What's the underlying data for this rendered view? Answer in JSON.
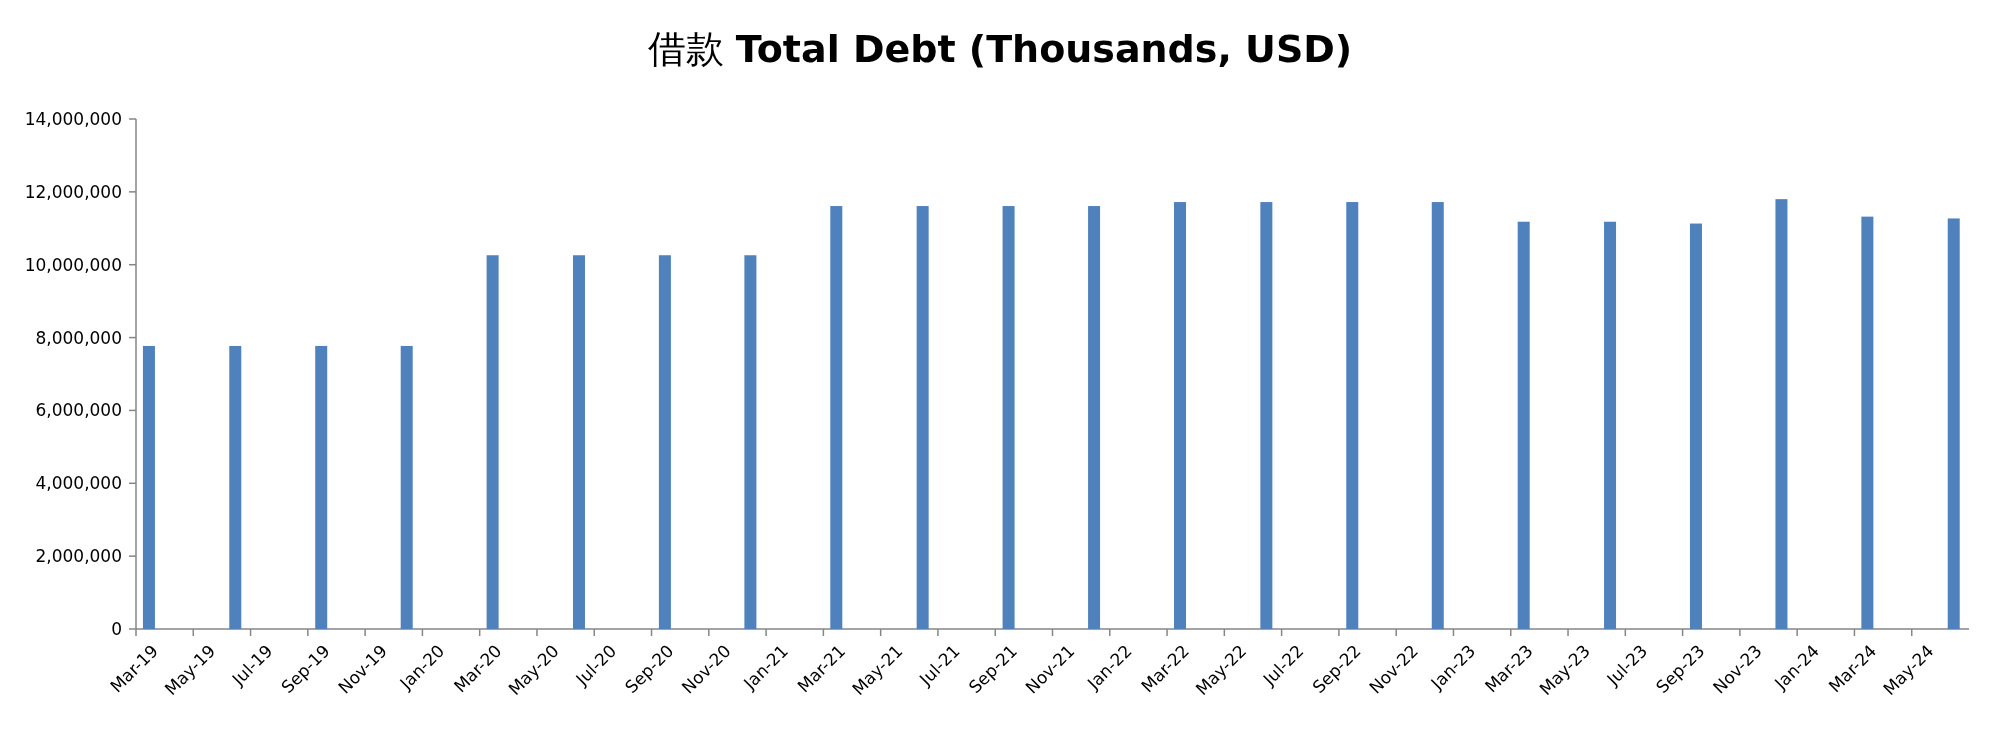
{
  "chart_data": {
    "type": "bar",
    "title": "借款 **Total Debt (Thousands, USD)**",
    "x": [
      "2019-03-15",
      "2019-06-15",
      "2019-09-15",
      "2019-12-15",
      "2020-03-15",
      "2020-06-15",
      "2020-09-15",
      "2020-12-15",
      "2021-03-15",
      "2021-06-15",
      "2021-09-15",
      "2021-12-15",
      "2022-03-15",
      "2022-06-15",
      "2022-09-15",
      "2022-12-15",
      "2023-03-15",
      "2023-06-15",
      "2023-09-15",
      "2023-12-15",
      "2024-03-15",
      "2024-06-15"
    ],
    "values": [
      7770000,
      7770000,
      7770000,
      7770000,
      10260000,
      10260000,
      10260000,
      10260000,
      11610000,
      11610000,
      11610000,
      11610000,
      11720000,
      11720000,
      11720000,
      11720000,
      11180000,
      11180000,
      11130000,
      11800000,
      11320000,
      11270000
    ],
    "color": "#4f81bd",
    "xlim": [
      "2019-03",
      "2024-07"
    ],
    "ylim": [
      0,
      14000000
    ],
    "yticks": [
      {
        "value": 0,
        "label": "0"
      },
      {
        "value": 2000000,
        "label": "2,000,000"
      },
      {
        "value": 4000000,
        "label": "4,000,000"
      },
      {
        "value": 6000000,
        "label": "6,000,000"
      },
      {
        "value": 8000000,
        "label": "8,000,000"
      },
      {
        "value": 10000000,
        "label": "10,000,000"
      },
      {
        "value": 12000000,
        "label": "12,000,000"
      },
      {
        "value": 14000000,
        "label": "14,000,000"
      }
    ],
    "xticks": [
      {
        "value": "2019-03",
        "label": "Mar-19"
      },
      {
        "value": "2019-05",
        "label": "May-19"
      },
      {
        "value": "2019-07",
        "label": "Jul-19"
      },
      {
        "value": "2019-09",
        "label": "Sep-19"
      },
      {
        "value": "2019-11",
        "label": "Nov-19"
      },
      {
        "value": "2020-01",
        "label": "Jan-20"
      },
      {
        "value": "2020-03",
        "label": "Mar-20"
      },
      {
        "value": "2020-05",
        "label": "May-20"
      },
      {
        "value": "2020-07",
        "label": "Jul-20"
      },
      {
        "value": "2020-09",
        "label": "Sep-20"
      },
      {
        "value": "2020-11",
        "label": "Nov-20"
      },
      {
        "value": "2021-01",
        "label": "Jan-21"
      },
      {
        "value": "2021-03",
        "label": "Mar-21"
      },
      {
        "value": "2021-05",
        "label": "May-21"
      },
      {
        "value": "2021-07",
        "label": "Jul-21"
      },
      {
        "value": "2021-09",
        "label": "Sep-21"
      },
      {
        "value": "2021-11",
        "label": "Nov-21"
      },
      {
        "value": "2022-01",
        "label": "Jan-22"
      },
      {
        "value": "2022-03",
        "label": "Mar-22"
      },
      {
        "value": "2022-05",
        "label": "May-22"
      },
      {
        "value": "2022-07",
        "label": "Jul-22"
      },
      {
        "value": "2022-09",
        "label": "Sep-22"
      },
      {
        "value": "2022-11",
        "label": "Nov-22"
      },
      {
        "value": "2023-01",
        "label": "Jan-23"
      },
      {
        "value": "2023-03",
        "label": "Mar-23"
      },
      {
        "value": "2023-05",
        "label": "May-23"
      },
      {
        "value": "2023-07",
        "label": "Jul-23"
      },
      {
        "value": "2023-09",
        "label": "Sep-23"
      },
      {
        "value": "2023-11",
        "label": "Nov-23"
      },
      {
        "value": "2024-01",
        "label": "Jan-24"
      },
      {
        "value": "2024-03",
        "label": "Mar-24"
      },
      {
        "value": "2024-05",
        "label": "May-24"
      }
    ]
  }
}
